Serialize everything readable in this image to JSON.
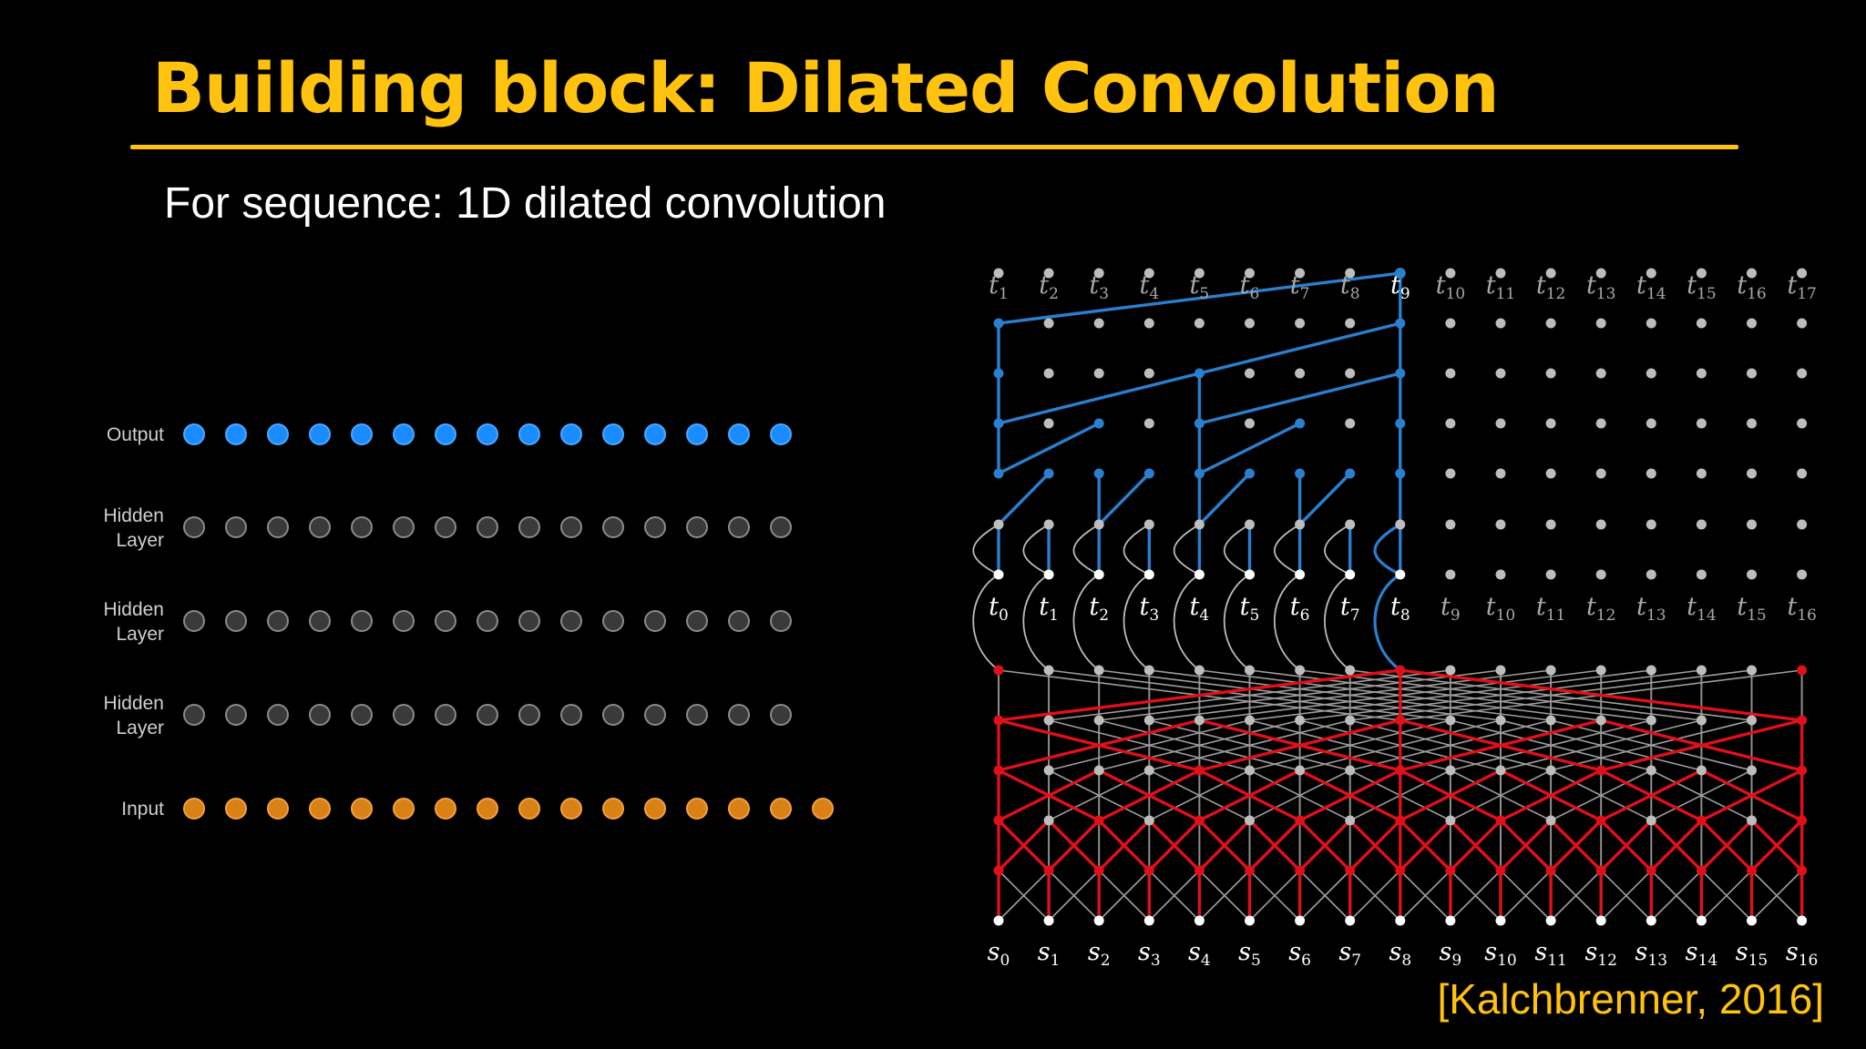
{
  "slide": {
    "title": "Building block: Dilated Convolution",
    "subtitle": "For sequence: 1D dilated convolution",
    "citation": "[Kalchbrenner, 2016]"
  },
  "colors": {
    "title": "#FFC20E",
    "output_node": "#1a8cff",
    "hidden_node": "#3a3a3a",
    "input_node": "#d98016",
    "decoder_edge": "#2a7fcf",
    "encoder_edge": "#e0101a",
    "grid_node": "#bdbdbd"
  },
  "left_diagram": {
    "rows": [
      {
        "label_lines": [
          "Output"
        ],
        "kind": "output",
        "count": 15
      },
      {
        "label_lines": [
          "Hidden",
          "Layer"
        ],
        "kind": "hidden",
        "count": 15
      },
      {
        "label_lines": [
          "Hidden",
          "Layer"
        ],
        "kind": "hidden",
        "count": 15
      },
      {
        "label_lines": [
          "Hidden",
          "Layer"
        ],
        "kind": "hidden",
        "count": 15
      },
      {
        "label_lines": [
          "Input"
        ],
        "kind": "input",
        "count": 16
      }
    ]
  },
  "right_diagram": {
    "target_labels": [
      {
        "base": "t",
        "sub": "1"
      },
      {
        "base": "t",
        "sub": "2"
      },
      {
        "base": "t",
        "sub": "3"
      },
      {
        "base": "t",
        "sub": "4"
      },
      {
        "base": "t",
        "sub": "5"
      },
      {
        "base": "t",
        "sub": "6"
      },
      {
        "base": "t",
        "sub": "7"
      },
      {
        "base": "t",
        "sub": "8"
      },
      {
        "base": "t",
        "sub": "9"
      },
      {
        "base": "t",
        "sub": "10"
      },
      {
        "base": "t",
        "sub": "11"
      },
      {
        "base": "t",
        "sub": "12"
      },
      {
        "base": "t",
        "sub": "13"
      },
      {
        "base": "t",
        "sub": "14"
      },
      {
        "base": "t",
        "sub": "15"
      },
      {
        "base": "t",
        "sub": "16"
      },
      {
        "base": "t",
        "sub": "17"
      }
    ],
    "decoder_input_labels": [
      {
        "base": "t",
        "sub": "0"
      },
      {
        "base": "t",
        "sub": "1"
      },
      {
        "base": "t",
        "sub": "2"
      },
      {
        "base": "t",
        "sub": "3"
      },
      {
        "base": "t",
        "sub": "4"
      },
      {
        "base": "t",
        "sub": "5"
      },
      {
        "base": "t",
        "sub": "6"
      },
      {
        "base": "t",
        "sub": "7"
      },
      {
        "base": "t",
        "sub": "8"
      },
      {
        "base": "t",
        "sub": "9"
      },
      {
        "base": "t",
        "sub": "10"
      },
      {
        "base": "t",
        "sub": "11"
      },
      {
        "base": "t",
        "sub": "12"
      },
      {
        "base": "t",
        "sub": "13"
      },
      {
        "base": "t",
        "sub": "14"
      },
      {
        "base": "t",
        "sub": "15"
      },
      {
        "base": "t",
        "sub": "16"
      }
    ],
    "source_labels": [
      {
        "base": "s",
        "sub": "0"
      },
      {
        "base": "s",
        "sub": "1"
      },
      {
        "base": "s",
        "sub": "2"
      },
      {
        "base": "s",
        "sub": "3"
      },
      {
        "base": "s",
        "sub": "4"
      },
      {
        "base": "s",
        "sub": "5"
      },
      {
        "base": "s",
        "sub": "6"
      },
      {
        "base": "s",
        "sub": "7"
      },
      {
        "base": "s",
        "sub": "8"
      },
      {
        "base": "s",
        "sub": "9"
      },
      {
        "base": "s",
        "sub": "10"
      },
      {
        "base": "s",
        "sub": "11"
      },
      {
        "base": "s",
        "sub": "12"
      },
      {
        "base": "s",
        "sub": "13"
      },
      {
        "base": "s",
        "sub": "14"
      },
      {
        "base": "s",
        "sub": "15"
      },
      {
        "base": "s",
        "sub": "16"
      }
    ],
    "highlighted_target_index": 8,
    "highlighted_decoder_input_count": 9
  }
}
